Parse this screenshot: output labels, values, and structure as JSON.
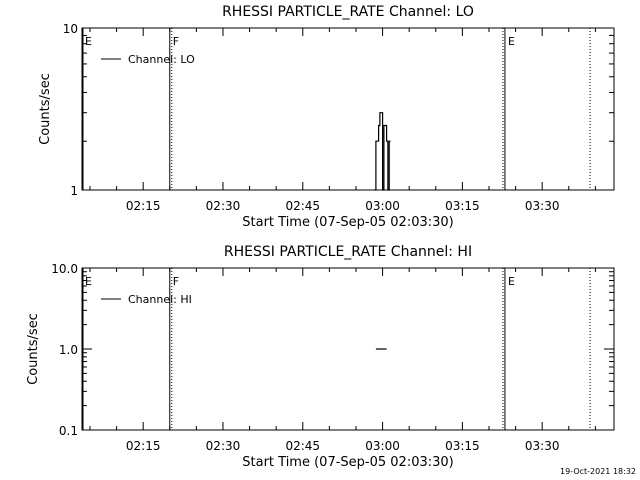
{
  "chart_data": [
    {
      "type": "line",
      "title": "RHESSI PARTICLE_RATE Channel: LO",
      "xlabel": "Start Time (07-Sep-05 02:03:30)",
      "ylabel": "Counts/sec",
      "yscale": "log",
      "ylim": [
        1,
        10
      ],
      "y_ticks": [
        "1",
        "10"
      ],
      "xlim": [
        "02:03:30",
        "03:43:30"
      ],
      "x_ticks": [
        "02:15",
        "02:30",
        "02:45",
        "03:00",
        "03:15",
        "03:30"
      ],
      "legend": [
        "Channel: LO"
      ],
      "legend_position": "top-left",
      "markers": [
        {
          "label": "E",
          "time": "02:03:30",
          "style": "solid"
        },
        {
          "label": "F",
          "time": "02:20:00",
          "style": "dotted"
        },
        {
          "label": "F",
          "time": "02:20:00",
          "style": "solid"
        },
        {
          "label": "E",
          "time": "03:23:00",
          "style": "solid"
        },
        {
          "label": "E",
          "time": "03:23:00",
          "style": "dotted"
        },
        {
          "label": "",
          "time": "03:39:00",
          "style": "dotted"
        }
      ],
      "series": [
        {
          "name": "Channel: LO",
          "x": [
            "02:58:30",
            "02:58:45",
            "02:59:00",
            "02:59:15",
            "02:59:30",
            "02:59:45",
            "03:00:00",
            "03:00:00",
            "03:00:15",
            "03:00:30",
            "03:00:45",
            "03:01:00",
            "03:01:00",
            "03:01:15",
            "03:01:30"
          ],
          "y": [
            1,
            2,
            2,
            2.5,
            3,
            3,
            2.5,
            1,
            2.5,
            2.5,
            2,
            2,
            1,
            2,
            2
          ]
        }
      ]
    },
    {
      "type": "line",
      "title": "RHESSI PARTICLE_RATE Channel: HI",
      "xlabel": "Start Time (07-Sep-05 02:03:30)",
      "ylabel": "Counts/sec",
      "yscale": "log",
      "ylim": [
        0.1,
        10
      ],
      "y_ticks": [
        "0.1",
        "1.0",
        "10.0"
      ],
      "xlim": [
        "02:03:30",
        "03:43:30"
      ],
      "x_ticks": [
        "02:15",
        "02:30",
        "02:45",
        "03:00",
        "03:15",
        "03:30"
      ],
      "legend": [
        "Channel: HI"
      ],
      "legend_position": "top-left",
      "markers": [
        {
          "label": "E",
          "time": "02:03:30",
          "style": "solid"
        },
        {
          "label": "F",
          "time": "02:20:00",
          "style": "dotted"
        },
        {
          "label": "F",
          "time": "02:20:00",
          "style": "solid"
        },
        {
          "label": "E",
          "time": "03:23:00",
          "style": "solid"
        },
        {
          "label": "E",
          "time": "03:23:00",
          "style": "dotted"
        },
        {
          "label": "",
          "time": "03:39:00",
          "style": "dotted"
        }
      ],
      "series": [
        {
          "name": "Channel: HI",
          "x": [
            "02:58:45",
            "03:00:45"
          ],
          "y": [
            1,
            1
          ]
        }
      ]
    }
  ],
  "footer": {
    "timestamp": "19-Oct-2021 18:32"
  }
}
